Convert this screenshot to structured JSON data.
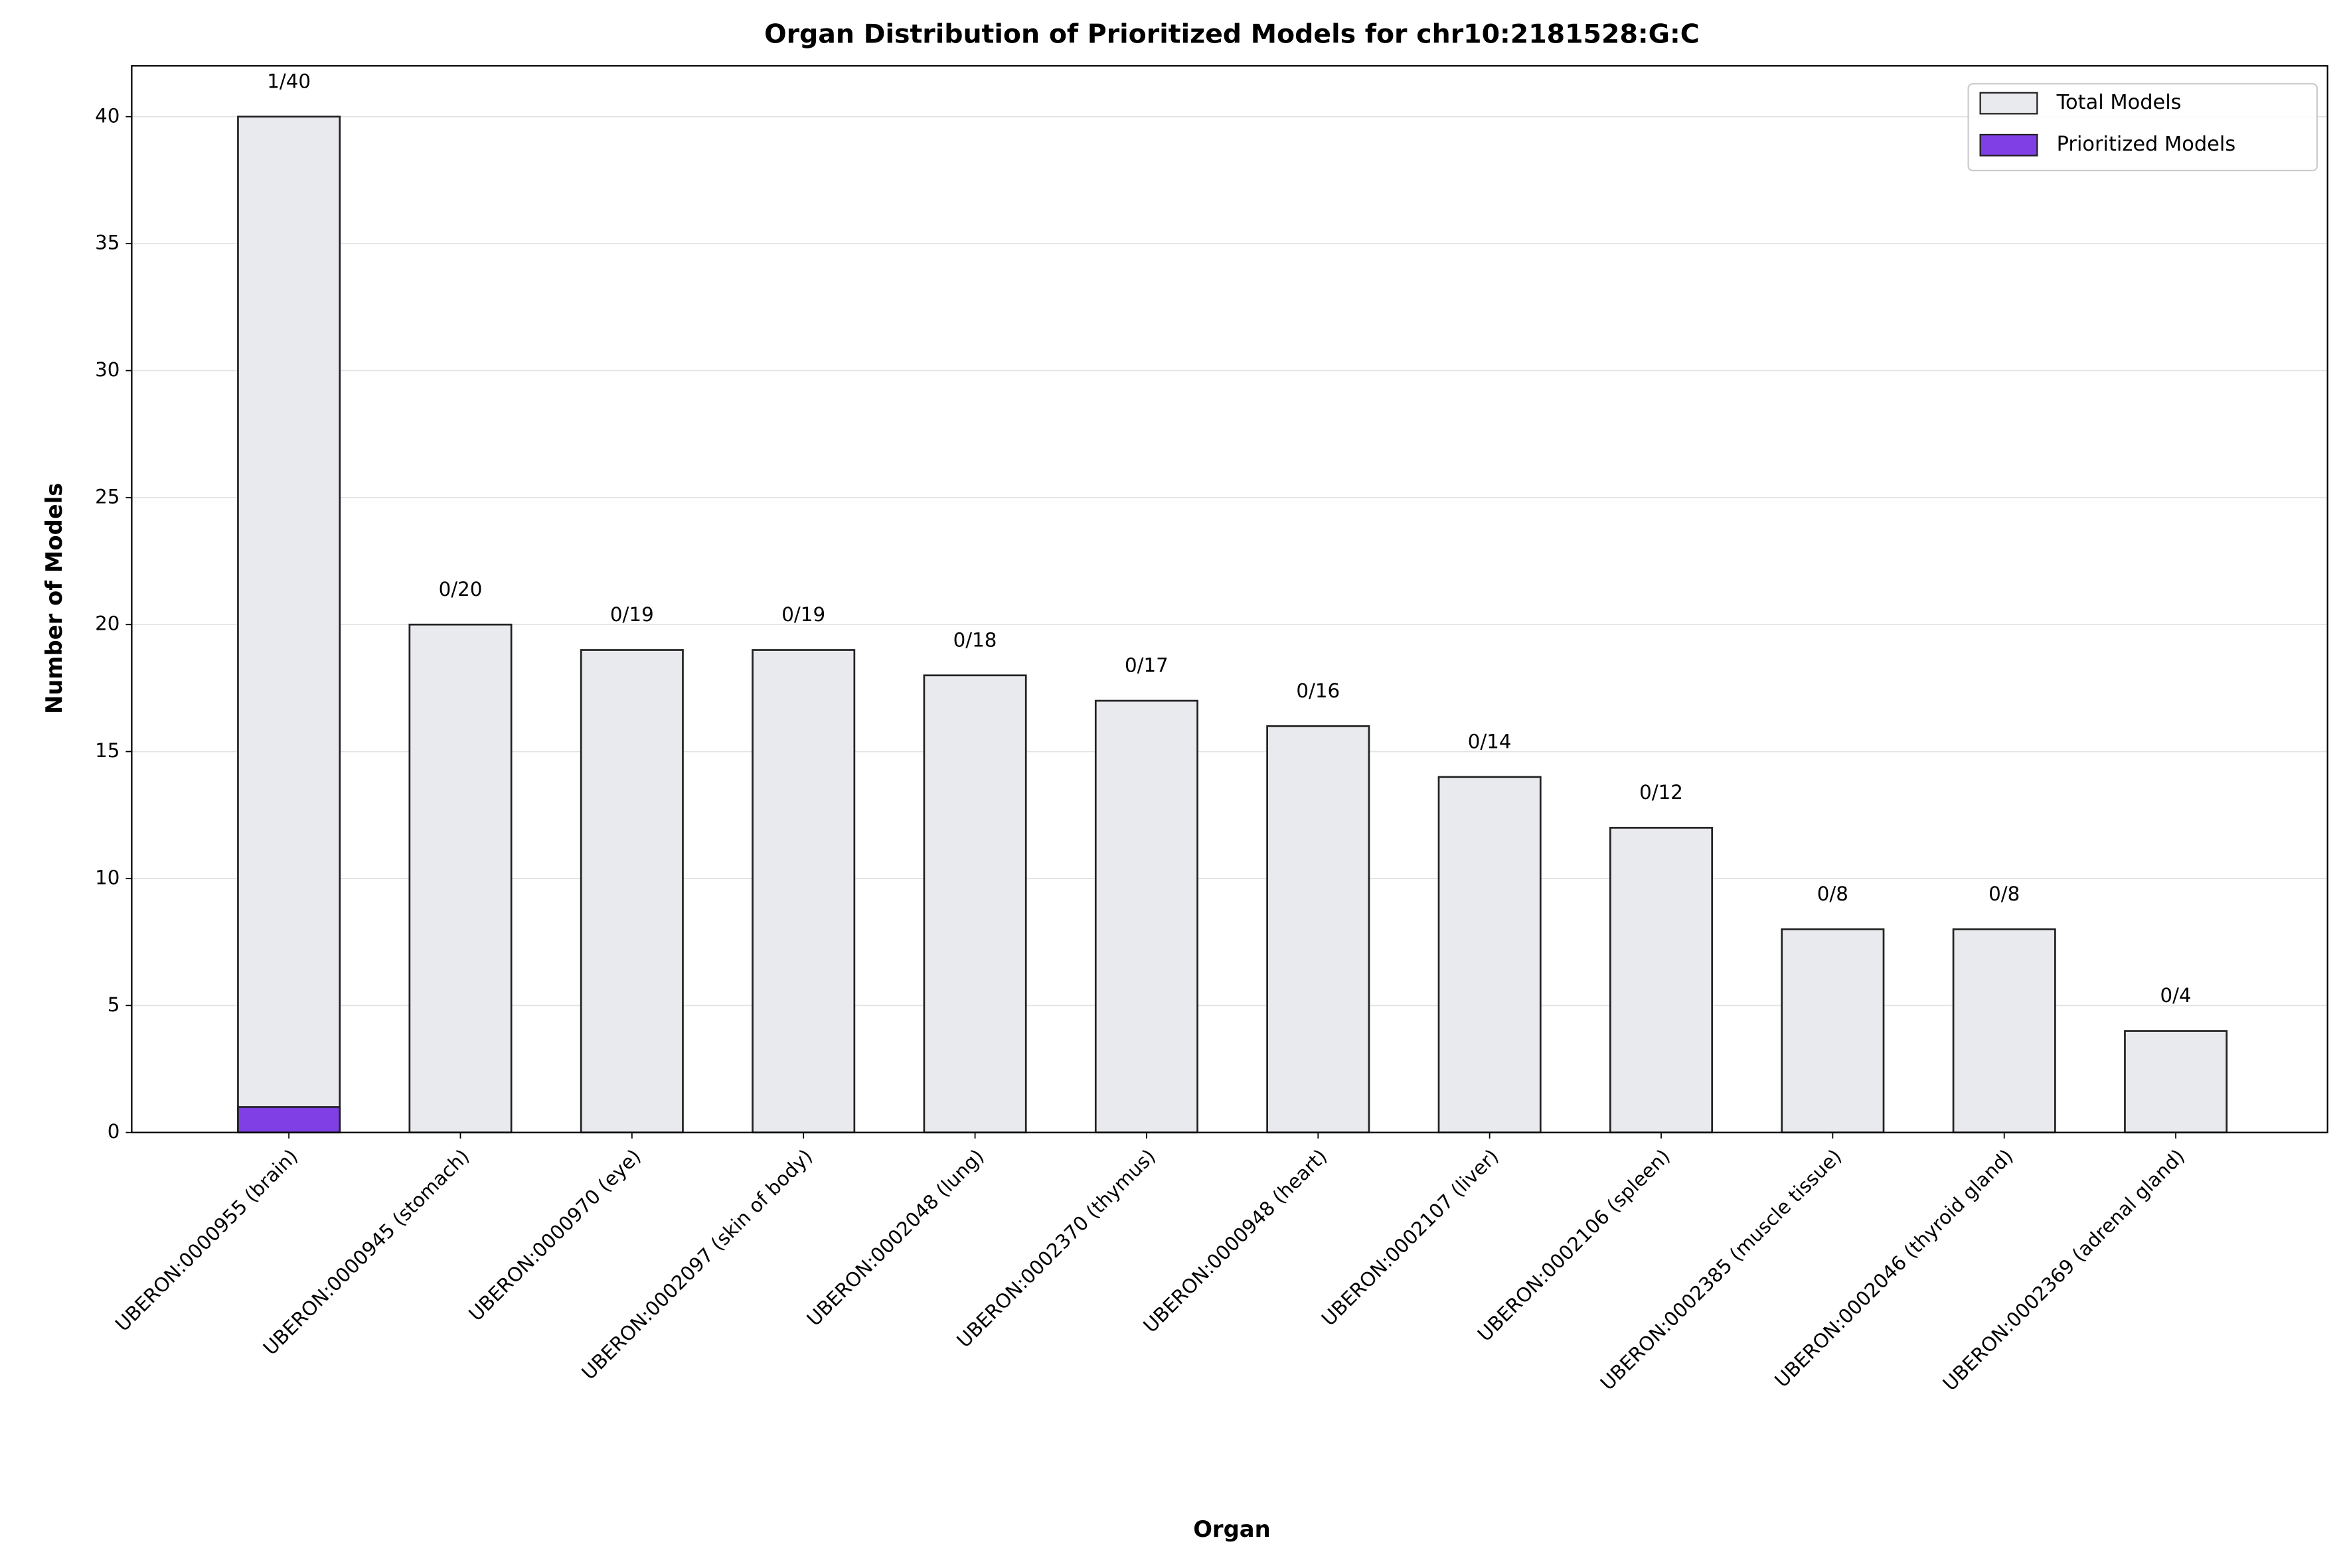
{
  "chart_data": {
    "type": "bar",
    "title": "Organ Distribution of Prioritized Models for chr10:2181528:G:C",
    "x_label": "Organ",
    "y_label": "Number of Models",
    "categories": [
      "UBERON:0000955 (brain)",
      "UBERON:0000945 (stomach)",
      "UBERON:0000970 (eye)",
      "UBERON:0002097 (skin of body)",
      "UBERON:0002048 (lung)",
      "UBERON:0002370 (thymus)",
      "UBERON:0000948 (heart)",
      "UBERON:0002107 (liver)",
      "UBERON:0002106 (spleen)",
      "UBERON:0002385 (muscle tissue)",
      "UBERON:0002046 (thyroid gland)",
      "UBERON:0002369 (adrenal gland)"
    ],
    "series": [
      {
        "name": "Total Models",
        "color": "#e9eaed",
        "values": [
          40,
          20,
          19,
          19,
          18,
          17,
          16,
          14,
          12,
          8,
          8,
          4
        ],
        "value_labels": [
          "1/40",
          "0/20",
          "0/19",
          "0/19",
          "0/18",
          "0/17",
          "0/16",
          "0/14",
          "0/12",
          "0/8",
          "0/8",
          "0/4"
        ]
      },
      {
        "name": "Prioritized Models",
        "color": "#7f3fe4",
        "values": [
          1,
          0,
          0,
          0,
          0,
          0,
          0,
          0,
          0,
          0,
          0,
          0
        ]
      }
    ],
    "ylim": [
      0,
      42
    ],
    "yticks": [
      0,
      5,
      10,
      15,
      20,
      25,
      30,
      35,
      40
    ],
    "grid": true,
    "legend": "upper right"
  }
}
